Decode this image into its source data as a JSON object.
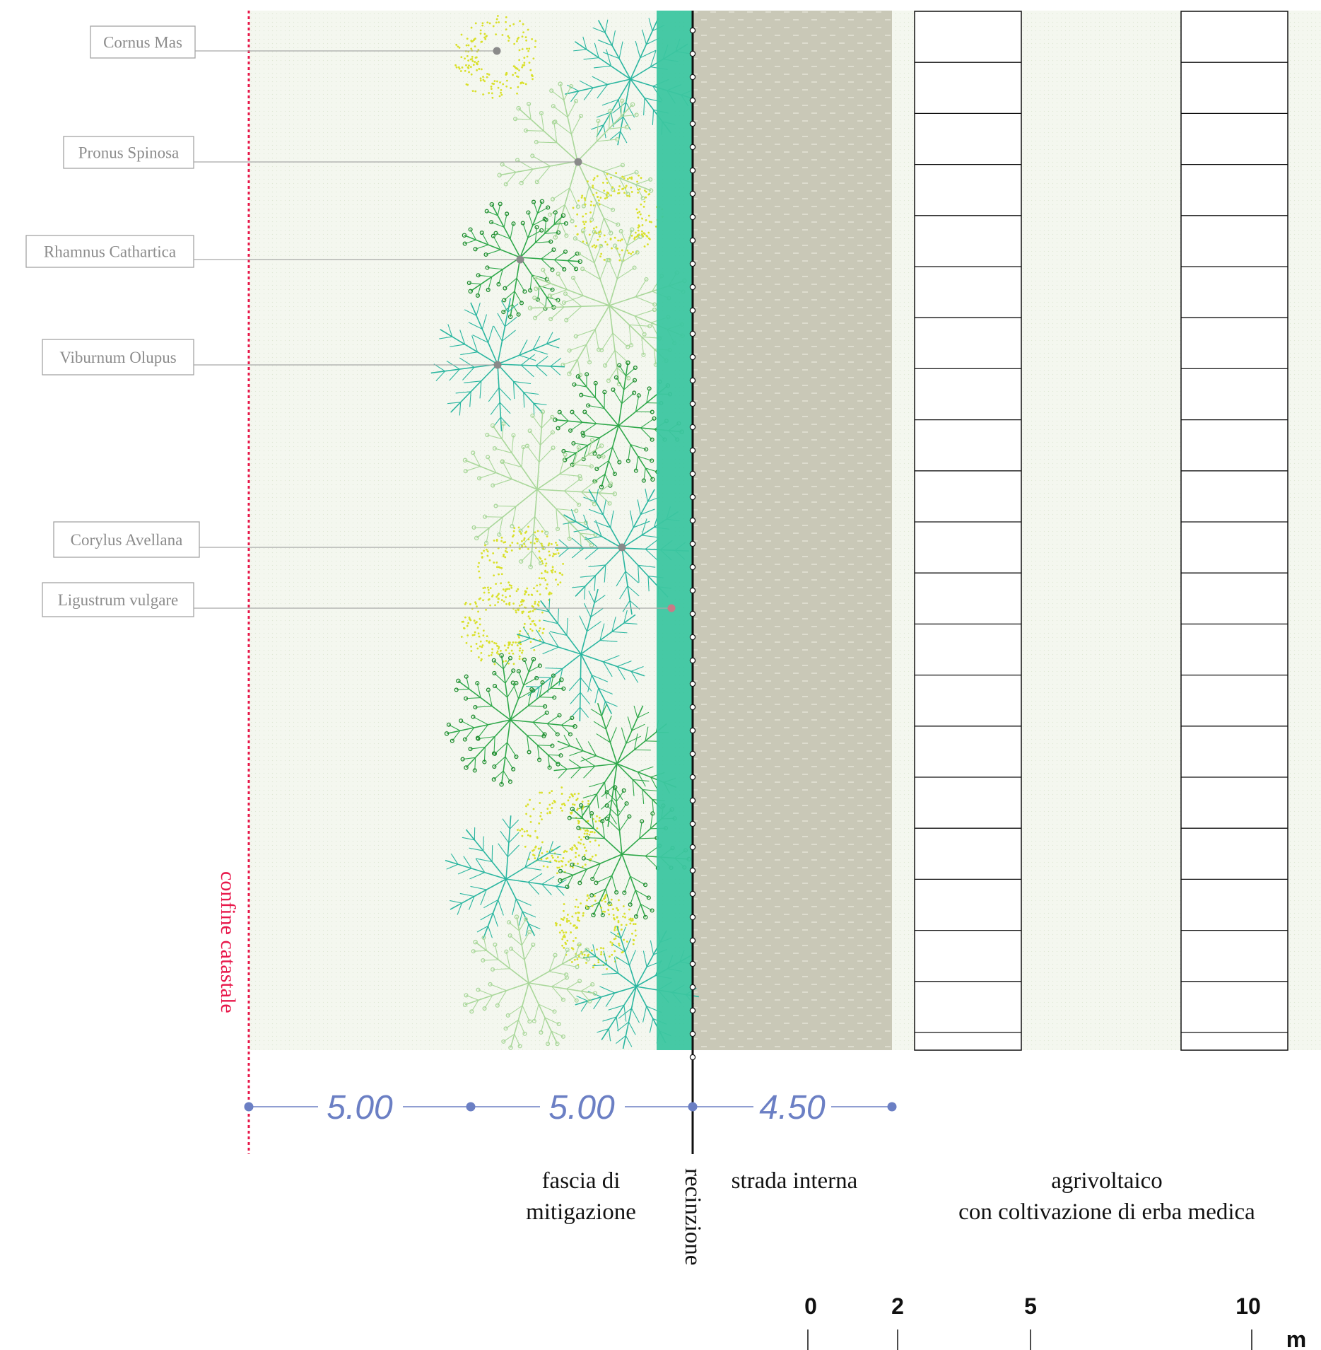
{
  "species": [
    "Cornus Mas",
    "Pronus Spinosa",
    "Rhamnus Cathartica",
    "Viburnum Olupus",
    "Corylus Avellana",
    "Ligustrum vulgare"
  ],
  "boundary_label": "confine catastale",
  "dimensions": [
    "5.00",
    "5.00",
    "4.50"
  ],
  "zones": {
    "mitigation": [
      "fascia di",
      "mitigazione"
    ],
    "fence": "recinzione",
    "road": "strada interna",
    "agri": [
      "agrivoltaico",
      "con coltivazione di erba medica"
    ]
  },
  "scale_bar": {
    "ticks": [
      "0",
      "2",
      "5",
      "10"
    ],
    "unit": "m"
  },
  "colors": {
    "boundary": "#e8174a",
    "dimension": "#6b7fc4",
    "hedge": "#3cc6a0",
    "road": "#c8c7b6",
    "grass": "#f3f6ee",
    "callout": "#9a9a9a",
    "tree_teal": "#2ab6a0",
    "tree_green": "#2fa84a",
    "tree_dark": "#1f8c2e",
    "tree_light": "#a9d79a",
    "tree_yellow": "#d9e02a"
  }
}
